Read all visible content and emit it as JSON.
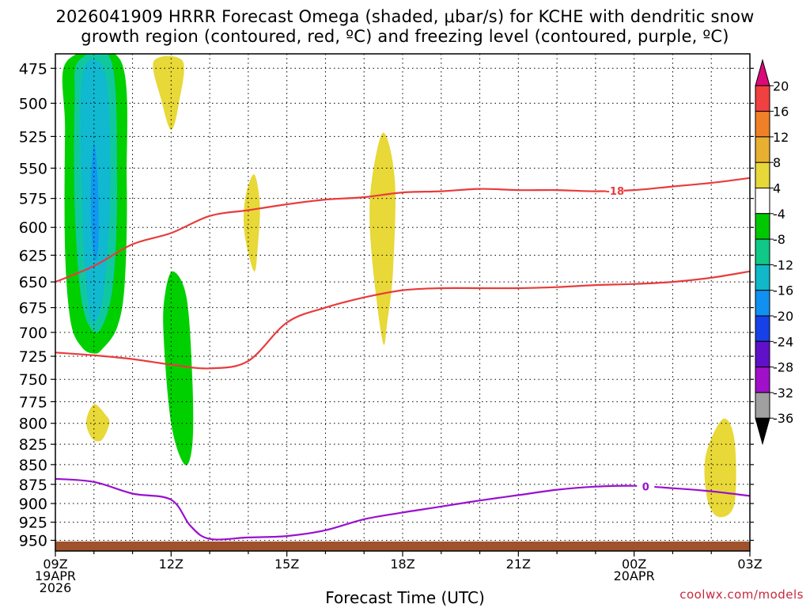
{
  "header": {
    "title_line1": "2026041909 HRRR Forecast Omega (shaded, μbar/s) for KCHE with dendritic snow",
    "title_line2": "growth region (contoured, red, ºC) and freezing level (contoured, purple, ºC)"
  },
  "footer": {
    "credit": "coolwx.com/models"
  },
  "chart_data": {
    "type": "area",
    "xlabel": "Forecast Time (UTC)",
    "ylabel": "",
    "x_ticks": [
      {
        "hour": 0,
        "label": "09Z",
        "sub1": "19APR",
        "sub2": "2026"
      },
      {
        "hour": 3,
        "label": "12Z",
        "sub1": "",
        "sub2": ""
      },
      {
        "hour": 6,
        "label": "15Z",
        "sub1": "",
        "sub2": ""
      },
      {
        "hour": 9,
        "label": "18Z",
        "sub1": "",
        "sub2": ""
      },
      {
        "hour": 12,
        "label": "21Z",
        "sub1": "",
        "sub2": ""
      },
      {
        "hour": 15,
        "label": "00Z",
        "sub1": "20APR",
        "sub2": ""
      },
      {
        "hour": 18,
        "label": "03Z",
        "sub1": "",
        "sub2": ""
      }
    ],
    "xlim": [
      0,
      18
    ],
    "ylim": [
      465,
      965
    ],
    "y_ticks": [
      475,
      500,
      525,
      550,
      575,
      600,
      625,
      650,
      675,
      700,
      725,
      750,
      775,
      800,
      825,
      850,
      875,
      900,
      925,
      950
    ],
    "y_scale": "log-pressure",
    "grid": true,
    "colorbar": {
      "labels": [
        "20",
        "16",
        "12",
        "8",
        "4",
        "-4",
        "-8",
        "-12",
        "-16",
        "-20",
        "-24",
        "-28",
        "-32",
        "-36"
      ],
      "colors": [
        "#dc0a78",
        "#f04040",
        "#f08028",
        "#e8b030",
        "#e6d838",
        "#ffffff",
        "#00c800",
        "#10c888",
        "#10b8c8",
        "#1090f0",
        "#1840e8",
        "#6010c8",
        "#a010c8",
        "#a0a0a0",
        "#000000"
      ]
    },
    "omega_regions": [
      {
        "value": -8,
        "color": "#00d000",
        "points": [
          [
            0.3,
            470
          ],
          [
            1.7,
            470
          ],
          [
            1.85,
            560
          ],
          [
            1.8,
            650
          ],
          [
            1.6,
            695
          ],
          [
            1.2,
            718
          ],
          [
            1.0,
            722
          ],
          [
            0.7,
            716
          ],
          [
            0.4,
            690
          ],
          [
            0.25,
            620
          ],
          [
            0.25,
            520
          ]
        ]
      },
      {
        "value": -12,
        "color": "#10c8a0",
        "points": [
          [
            0.6,
            470
          ],
          [
            1.45,
            470
          ],
          [
            1.6,
            560
          ],
          [
            1.5,
            650
          ],
          [
            1.2,
            695
          ],
          [
            0.9,
            695
          ],
          [
            0.65,
            660
          ],
          [
            0.5,
            580
          ],
          [
            0.5,
            500
          ]
        ]
      },
      {
        "value": -16,
        "color": "#10b8d0",
        "points": [
          [
            0.7,
            480
          ],
          [
            1.3,
            480
          ],
          [
            1.42,
            570
          ],
          [
            1.25,
            660
          ],
          [
            1.0,
            690
          ],
          [
            0.85,
            670
          ],
          [
            0.7,
            590
          ]
        ]
      },
      {
        "value": -20,
        "color": "#1098f0",
        "points": [
          [
            1.0,
            530
          ],
          [
            1.1,
            560
          ],
          [
            1.12,
            610
          ],
          [
            1.05,
            630
          ],
          [
            0.95,
            612
          ],
          [
            0.92,
            565
          ]
        ]
      },
      {
        "value": -8,
        "color": "#00d000",
        "points": [
          [
            3.05,
            640
          ],
          [
            3.4,
            665
          ],
          [
            3.55,
            750
          ],
          [
            3.55,
            825
          ],
          [
            3.35,
            850
          ],
          [
            3.0,
            800
          ],
          [
            2.8,
            700
          ],
          [
            2.85,
            660
          ]
        ]
      },
      {
        "value": 4,
        "color": "#e8d838",
        "points": [
          [
            2.55,
            470
          ],
          [
            3.3,
            470
          ],
          [
            3.2,
            500
          ],
          [
            3.0,
            520
          ],
          [
            2.75,
            498
          ]
        ]
      },
      {
        "value": 4,
        "color": "#e8d838",
        "points": [
          [
            5.15,
            555
          ],
          [
            5.3,
            580
          ],
          [
            5.25,
            615
          ],
          [
            5.15,
            640
          ],
          [
            4.9,
            605
          ],
          [
            4.92,
            575
          ]
        ]
      },
      {
        "value": 4,
        "color": "#e8d838",
        "points": [
          [
            8.5,
            522
          ],
          [
            8.8,
            560
          ],
          [
            8.75,
            640
          ],
          [
            8.6,
            690
          ],
          [
            8.5,
            712
          ],
          [
            8.3,
            660
          ],
          [
            8.15,
            600
          ],
          [
            8.2,
            560
          ]
        ]
      },
      {
        "value": 4,
        "color": "#e8d838",
        "points": [
          [
            1.0,
            778
          ],
          [
            1.3,
            790
          ],
          [
            1.4,
            800
          ],
          [
            1.2,
            820
          ],
          [
            0.95,
            818
          ],
          [
            0.8,
            798
          ]
        ]
      },
      {
        "value": 4,
        "color": "#e8d838",
        "points": [
          [
            17.3,
            795
          ],
          [
            17.6,
            820
          ],
          [
            17.6,
            900
          ],
          [
            17.2,
            918
          ],
          [
            16.9,
            895
          ],
          [
            16.85,
            840
          ]
        ]
      }
    ],
    "series": [
      {
        "name": "-18",
        "color": "#e83c3c",
        "label_at_hour": 14.5,
        "points": [
          [
            0,
            650
          ],
          [
            1,
            635
          ],
          [
            2,
            615
          ],
          [
            3,
            605
          ],
          [
            4,
            590
          ],
          [
            5,
            585
          ],
          [
            6,
            580
          ],
          [
            7,
            576
          ],
          [
            8,
            574
          ],
          [
            9,
            570
          ],
          [
            10,
            569
          ],
          [
            11,
            567
          ],
          [
            12,
            568
          ],
          [
            13,
            568
          ],
          [
            14,
            569
          ],
          [
            15,
            568
          ],
          [
            16,
            565
          ],
          [
            17,
            562
          ],
          [
            18,
            558
          ]
        ]
      },
      {
        "name": "",
        "color": "#e83c3c",
        "points": [
          [
            0,
            721
          ],
          [
            1,
            724
          ],
          [
            2,
            728
          ],
          [
            3,
            734
          ],
          [
            4,
            738
          ],
          [
            5,
            730
          ],
          [
            6,
            690
          ],
          [
            7,
            675
          ],
          [
            8,
            665
          ],
          [
            9,
            658
          ],
          [
            10,
            656
          ],
          [
            11,
            656
          ],
          [
            12,
            656
          ],
          [
            13,
            655
          ],
          [
            14,
            653
          ],
          [
            15,
            652
          ],
          [
            16,
            650
          ],
          [
            17,
            646
          ],
          [
            18,
            640
          ]
        ]
      },
      {
        "name": "0",
        "color": "#9a10d0",
        "label_at_hour": 15.3,
        "points": [
          [
            0,
            868
          ],
          [
            1,
            872
          ],
          [
            2,
            887
          ],
          [
            3,
            895
          ],
          [
            3.5,
            930
          ],
          [
            4,
            948
          ],
          [
            5,
            946
          ],
          [
            6,
            944
          ],
          [
            7,
            936
          ],
          [
            8,
            921
          ],
          [
            9,
            912
          ],
          [
            10,
            904
          ],
          [
            11,
            896
          ],
          [
            12,
            889
          ],
          [
            13,
            882
          ],
          [
            14,
            878
          ],
          [
            15,
            877
          ],
          [
            16,
            880
          ],
          [
            17,
            884
          ],
          [
            18,
            890
          ]
        ]
      }
    ]
  }
}
